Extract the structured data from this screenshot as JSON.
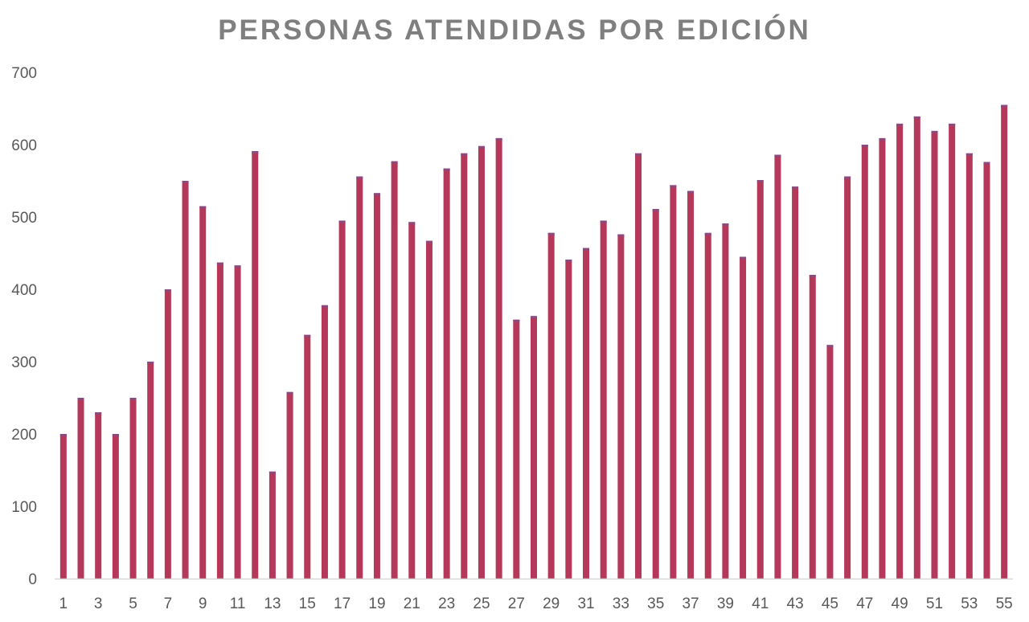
{
  "chart_data": {
    "type": "bar",
    "title": "PERSONAS ATENDIDAS POR EDICIÓN",
    "xlabel": "",
    "ylabel": "",
    "ylim": [
      0,
      700
    ],
    "yticks": [
      "0",
      "100",
      "200",
      "300",
      "400",
      "500",
      "600",
      "700"
    ],
    "categories": [
      "1",
      "2",
      "3",
      "4",
      "5",
      "6",
      "7",
      "8",
      "9",
      "10",
      "11",
      "12",
      "13",
      "14",
      "15",
      "16",
      "17",
      "18",
      "19",
      "20",
      "21",
      "22",
      "23",
      "24",
      "25",
      "26",
      "27",
      "28",
      "29",
      "30",
      "31",
      "32",
      "33",
      "34",
      "35",
      "36",
      "37",
      "38",
      "39",
      "40",
      "41",
      "42",
      "43",
      "44",
      "45",
      "46",
      "47",
      "48",
      "49",
      "50",
      "51",
      "52",
      "53",
      "54",
      "55"
    ],
    "shown_xticks": [
      "1",
      "3",
      "5",
      "7",
      "9",
      "11",
      "13",
      "15",
      "17",
      "19",
      "21",
      "23",
      "25",
      "27",
      "29",
      "31",
      "33",
      "35",
      "37",
      "39",
      "41",
      "43",
      "45",
      "47",
      "49",
      "51",
      "53",
      "55"
    ],
    "values": [
      200,
      250,
      230,
      200,
      250,
      300,
      400,
      550,
      515,
      437,
      433,
      591,
      148,
      258,
      337,
      378,
      495,
      556,
      533,
      577,
      493,
      467,
      567,
      588,
      598,
      609,
      358,
      363,
      478,
      441,
      457,
      495,
      476,
      588,
      511,
      544,
      536,
      478,
      491,
      445,
      551,
      586,
      542,
      420,
      323,
      556,
      600,
      609,
      629,
      639,
      619,
      629,
      588,
      576,
      655
    ],
    "grid": false,
    "legend": "none",
    "colors": {
      "bar": "#b5375a",
      "bar_cap": "#8a4a7d",
      "axis": "#d9d9d9",
      "text": "#595959",
      "title": "#7f7f7f"
    }
  }
}
